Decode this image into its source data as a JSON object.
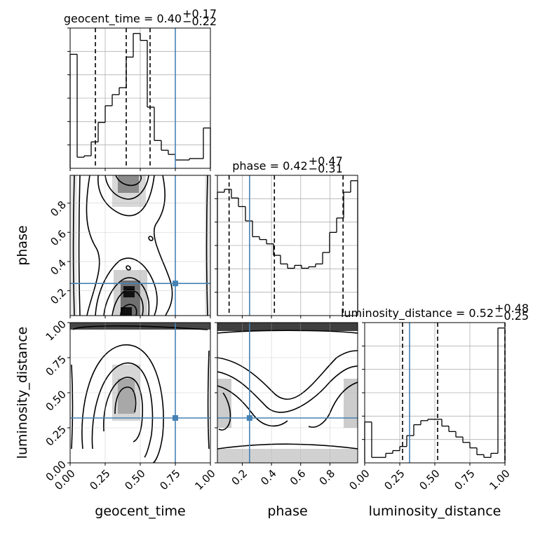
{
  "chart_data": {
    "type": "corner",
    "parameters": [
      "geocent_time",
      "phase",
      "luminosity_distance"
    ],
    "axis_labels": {
      "geocent_time": "geocent_time",
      "phase": "phase",
      "luminosity_distance": "luminosity_distance"
    },
    "ranges": {
      "geocent_time": [
        0,
        1
      ],
      "phase": [
        0.03,
        0.99
      ],
      "luminosity_distance": [
        0,
        1
      ]
    },
    "ticks": {
      "geocent_time": [
        0,
        0.25,
        0.5,
        0.75,
        1.0
      ],
      "geocent_time_labels": [
        "0.00",
        "0.25",
        "0.50",
        "0.75",
        "1.00"
      ],
      "phase_x": [
        0.2,
        0.4,
        0.6,
        0.8
      ],
      "phase_x_labels": [
        "0.2",
        "0.4",
        "0.6",
        "0.8"
      ],
      "phase_y": [
        0.2,
        0.4,
        0.6,
        0.8
      ],
      "phase_y_labels": [
        "0.2",
        "0.4",
        "0.6",
        "0.8"
      ],
      "luminosity_distance": [
        0,
        0.25,
        0.5,
        0.75,
        1.0
      ],
      "luminosity_distance_labels": [
        "0.00",
        "0.25",
        "0.50",
        "0.75",
        "1.00"
      ]
    },
    "titles": [
      {
        "param": "geocent_time",
        "label": "geocent_time = 0.40",
        "sup": "+0.17",
        "sub": "−0.22"
      },
      {
        "param": "phase",
        "label": "phase = 0.42",
        "sup": "+0.47",
        "sub": "−0.31"
      },
      {
        "param": "luminosity_distance",
        "label": "luminosity_distance = 0.52",
        "sup": "+0.48",
        "sub": "−0.25"
      }
    ],
    "histograms": {
      "geocent_time": {
        "edges": [
          0.0,
          0.05,
          0.1,
          0.15,
          0.2,
          0.25,
          0.3,
          0.35,
          0.4,
          0.45,
          0.5,
          0.55,
          0.6,
          0.65,
          0.7,
          0.75,
          0.8,
          0.85,
          0.9,
          0.95,
          1.0
        ],
        "counts": [
          0.82,
          0.08,
          0.09,
          0.19,
          0.33,
          0.45,
          0.53,
          0.58,
          0.8,
          0.97,
          0.92,
          0.44,
          0.2,
          0.13,
          0.1,
          0.06,
          0.06,
          0.07,
          0.07,
          0.29
        ],
        "quantiles": [
          0.18,
          0.4,
          0.57
        ],
        "truth": 0.75
      },
      "phase": {
        "edges": [
          0.03,
          0.078,
          0.126,
          0.174,
          0.222,
          0.27,
          0.318,
          0.366,
          0.414,
          0.462,
          0.51,
          0.558,
          0.606,
          0.654,
          0.702,
          0.75,
          0.798,
          0.846,
          0.894,
          0.942,
          0.99
        ],
        "counts": [
          0.86,
          0.88,
          0.82,
          0.76,
          0.66,
          0.55,
          0.53,
          0.5,
          0.42,
          0.36,
          0.33,
          0.35,
          0.33,
          0.34,
          0.36,
          0.44,
          0.58,
          0.68,
          0.86,
          0.94
        ],
        "quantiles": [
          0.11,
          0.42,
          0.89
        ],
        "truth": 0.25
      },
      "luminosity_distance": {
        "edges": [
          0.0,
          0.05,
          0.1,
          0.15,
          0.2,
          0.25,
          0.3,
          0.35,
          0.4,
          0.45,
          0.5,
          0.55,
          0.6,
          0.65,
          0.7,
          0.75,
          0.8,
          0.85,
          0.9,
          0.95,
          1.0
        ],
        "counts": [
          0.3,
          0.04,
          0.04,
          0.07,
          0.09,
          0.12,
          0.2,
          0.28,
          0.31,
          0.32,
          0.32,
          0.27,
          0.23,
          0.19,
          0.15,
          0.11,
          0.06,
          0.04,
          0.07,
          0.99
        ],
        "quantiles": [
          0.27,
          0.52,
          1.0
        ],
        "truth": 0.32
      }
    },
    "pairs": [
      {
        "x": "geocent_time",
        "y": "phase",
        "truth": [
          0.75,
          0.25
        ]
      },
      {
        "x": "geocent_time",
        "y": "luminosity_distance",
        "truth": [
          0.75,
          0.32
        ]
      },
      {
        "x": "phase",
        "y": "luminosity_distance",
        "truth": [
          0.25,
          0.32
        ]
      }
    ],
    "truth_color": "#4682b4",
    "grid": true
  }
}
